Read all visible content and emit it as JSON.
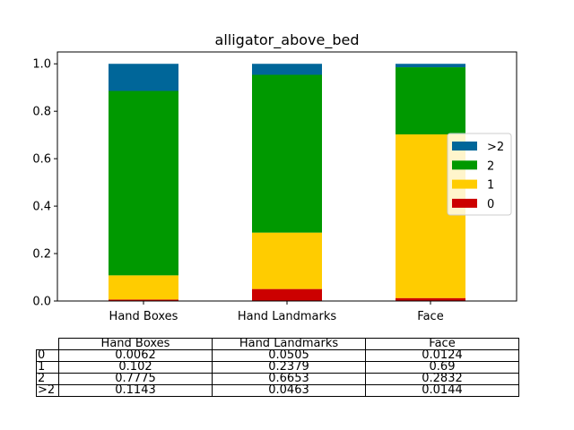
{
  "chart_data": {
    "type": "bar",
    "stacked": true,
    "title": "alligator_above_bed",
    "categories": [
      "Hand Boxes",
      "Hand Landmarks",
      "Face"
    ],
    "ylim": [
      0,
      1.05
    ],
    "yticks": [
      "0.0",
      "0.2",
      "0.4",
      "0.6",
      "0.8",
      "1.0"
    ],
    "legend_position": "right",
    "series": [
      {
        "name": "0",
        "color": "#cc0000",
        "values": [
          0.0062,
          0.0505,
          0.0124
        ]
      },
      {
        "name": "1",
        "color": "#ffcc00",
        "values": [
          0.102,
          0.2379,
          0.69
        ]
      },
      {
        "name": "2",
        "color": "#009900",
        "values": [
          0.7775,
          0.6653,
          0.2832
        ]
      },
      {
        "name": ">2",
        "color": "#006699",
        "values": [
          0.1143,
          0.0463,
          0.0144
        ]
      }
    ]
  },
  "table": {
    "columns": [
      "Hand Boxes",
      "Hand Landmarks",
      "Face"
    ],
    "rows": [
      {
        "label": "0",
        "cells": [
          "0.0062",
          "0.0505",
          "0.0124"
        ]
      },
      {
        "label": "1",
        "cells": [
          "0.102",
          "0.2379",
          "0.69"
        ]
      },
      {
        "label": "2",
        "cells": [
          "0.7775",
          "0.6653",
          "0.2832"
        ]
      },
      {
        "label": ">2",
        "cells": [
          "0.1143",
          "0.0463",
          "0.0144"
        ]
      }
    ]
  }
}
